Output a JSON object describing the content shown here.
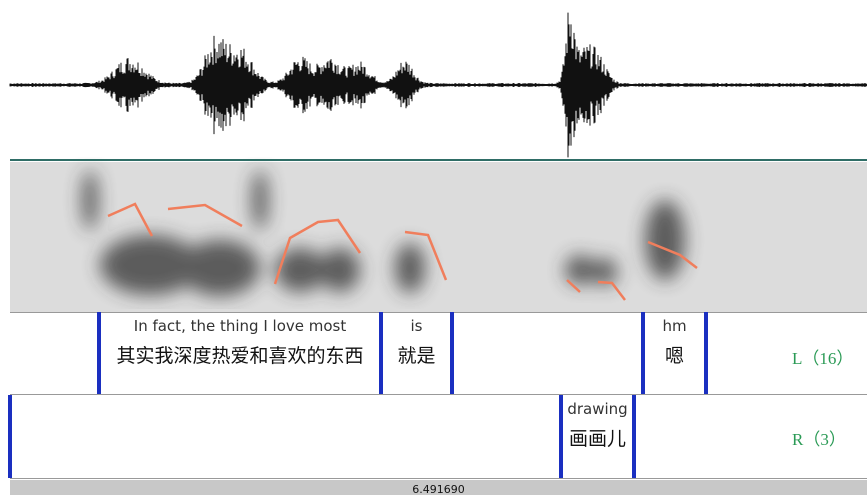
{
  "tiers": [
    {
      "name": "L（16）",
      "intervals": [
        {
          "english": "In fact, the thing I love most",
          "chinese": "其实我深度热爱和喜欢的东西"
        },
        {
          "english": "is",
          "chinese": "就是"
        },
        {
          "english": "hm",
          "chinese": "嗯"
        }
      ]
    },
    {
      "name": "R（3）",
      "intervals": [
        {
          "english": "drawing",
          "chinese": "画画儿"
        }
      ]
    }
  ],
  "time_label": "6.491690"
}
